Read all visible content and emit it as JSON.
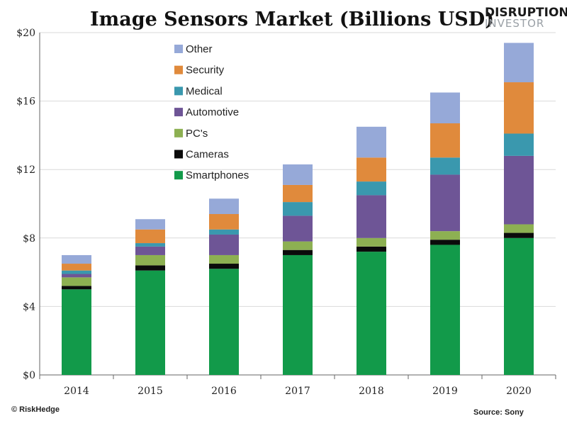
{
  "chart_data": {
    "type": "bar",
    "stacked": true,
    "title": "Image Sensors Market (Billions USD)",
    "categories": [
      "2014",
      "2015",
      "2016",
      "2017",
      "2018",
      "2019",
      "2020"
    ],
    "ylim": [
      0,
      20
    ],
    "yticks": [
      "$0",
      "$4",
      "$8",
      "$12",
      "$16",
      "$20"
    ],
    "ytick_values": [
      0,
      4,
      8,
      12,
      16,
      20
    ],
    "grid": "horizontal",
    "legend_position": "top-left",
    "series": [
      {
        "name": "Smartphones",
        "color": "#129a4a",
        "values": [
          5.0,
          6.1,
          6.2,
          7.0,
          7.2,
          7.6,
          8.0
        ]
      },
      {
        "name": "Cameras",
        "color": "#0b0b0b",
        "values": [
          0.2,
          0.3,
          0.3,
          0.3,
          0.3,
          0.3,
          0.3
        ]
      },
      {
        "name": "PC's",
        "color": "#8db052",
        "values": [
          0.5,
          0.6,
          0.5,
          0.5,
          0.5,
          0.5,
          0.5
        ]
      },
      {
        "name": "Automotive",
        "color": "#6e5596",
        "values": [
          0.2,
          0.5,
          1.2,
          1.5,
          2.5,
          3.3,
          4.0
        ]
      },
      {
        "name": "Medical",
        "color": "#3a98ae",
        "values": [
          0.2,
          0.2,
          0.3,
          0.8,
          0.8,
          1.0,
          1.3
        ]
      },
      {
        "name": "Security",
        "color": "#e08a3c",
        "values": [
          0.4,
          0.8,
          0.9,
          1.0,
          1.4,
          2.0,
          3.0
        ]
      },
      {
        "name": "Other",
        "color": "#96a9d8",
        "values": [
          0.5,
          0.6,
          0.9,
          1.2,
          1.8,
          1.8,
          2.3
        ]
      }
    ]
  },
  "brand": {
    "line1": "DISRUPTION",
    "line2": "INVESTOR"
  },
  "footer": {
    "left": "© RiskHedge",
    "right": "Source: Sony"
  }
}
